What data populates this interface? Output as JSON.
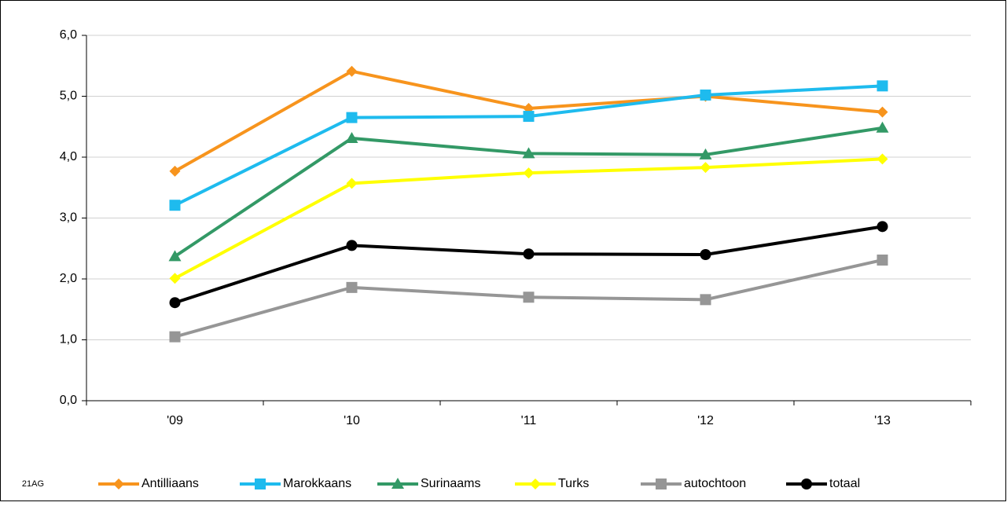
{
  "chart_data": {
    "type": "line",
    "annotation": "21AG",
    "categories": [
      "'09",
      "'10",
      "'11",
      "'12",
      "'13"
    ],
    "series": [
      {
        "name": "Antilliaans",
        "color": "#f7941d",
        "marker": "diamond",
        "values": [
          3.77,
          5.41,
          4.8,
          5.0,
          4.74
        ]
      },
      {
        "name": "Marokkaans",
        "color": "#1ebbee",
        "marker": "square",
        "values": [
          3.21,
          4.65,
          4.67,
          5.02,
          5.17
        ]
      },
      {
        "name": "Surinaams",
        "color": "#339966",
        "marker": "triangle",
        "values": [
          2.37,
          4.31,
          4.06,
          4.04,
          4.48
        ]
      },
      {
        "name": "Turks",
        "color": "#ffff00",
        "marker": "diamond",
        "values": [
          2.01,
          3.57,
          3.74,
          3.83,
          3.97
        ]
      },
      {
        "name": "autochtoon",
        "color": "#969696",
        "marker": "square",
        "values": [
          1.05,
          1.86,
          1.7,
          1.66,
          2.31
        ]
      },
      {
        "name": "totaal",
        "color": "#000000",
        "marker": "circle",
        "values": [
          1.61,
          2.55,
          2.41,
          2.4,
          2.86
        ]
      }
    ],
    "ylim": [
      0,
      6
    ],
    "yticks": [
      {
        "value": 0,
        "label": "0,0"
      },
      {
        "value": 1,
        "label": "1,0"
      },
      {
        "value": 2,
        "label": "2,0"
      },
      {
        "value": 3,
        "label": "3,0"
      },
      {
        "value": 4,
        "label": "4,0"
      },
      {
        "value": 5,
        "label": "5,0"
      },
      {
        "value": 6,
        "label": "6,0"
      }
    ],
    "grid": true,
    "legend": "bottom"
  }
}
